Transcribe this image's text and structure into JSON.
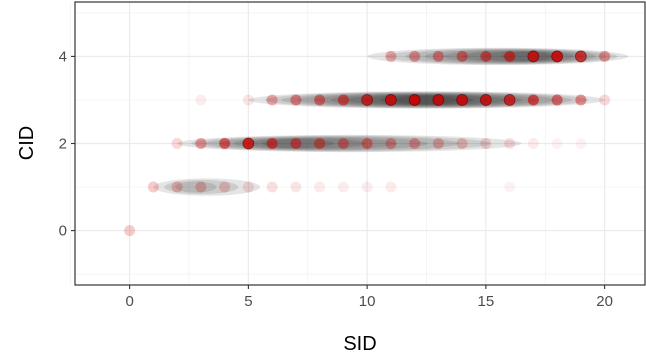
{
  "chart_data": {
    "type": "scatter",
    "title": "",
    "xlabel": "SID",
    "ylabel": "CID",
    "xlim": [
      -2.3,
      21.7
    ],
    "ylim": [
      -1.25,
      5.25
    ],
    "x_ticks": [
      0,
      5,
      10,
      15,
      20
    ],
    "y_ticks": [
      0,
      2,
      4
    ],
    "x_tick_labels": [
      "0",
      "5",
      "10",
      "15",
      "20"
    ],
    "y_tick_labels": [
      "0",
      "2",
      "4"
    ],
    "grid": true,
    "legend": "none",
    "point_color": "#cc0000",
    "density_color": "#000000",
    "density_regions": [
      {
        "y": 1,
        "x_min": 1.0,
        "x_max": 5.5,
        "x_peak": 2.5,
        "peak_intensity": 0.25
      },
      {
        "y": 2,
        "x_min": 2.0,
        "x_max": 16.5,
        "x_peak": 6.5,
        "peak_intensity": 0.7
      },
      {
        "y": 3,
        "x_min": 5.0,
        "x_max": 20.0,
        "x_peak": 12.5,
        "peak_intensity": 0.95
      },
      {
        "y": 4,
        "x_min": 10.0,
        "x_max": 21.0,
        "x_peak": 17.0,
        "peak_intensity": 0.75
      }
    ],
    "points": [
      {
        "x": 0,
        "y": 0,
        "a": 0.2
      },
      {
        "x": 1,
        "y": 1,
        "a": 0.2
      },
      {
        "x": 2,
        "y": 1,
        "a": 0.22
      },
      {
        "x": 3,
        "y": 1,
        "a": 0.22
      },
      {
        "x": 4,
        "y": 1,
        "a": 0.18
      },
      {
        "x": 5,
        "y": 1,
        "a": 0.12
      },
      {
        "x": 6,
        "y": 1,
        "a": 0.12
      },
      {
        "x": 7,
        "y": 1,
        "a": 0.1
      },
      {
        "x": 8,
        "y": 1,
        "a": 0.08
      },
      {
        "x": 9,
        "y": 1,
        "a": 0.07
      },
      {
        "x": 10,
        "y": 1,
        "a": 0.07
      },
      {
        "x": 11,
        "y": 1,
        "a": 0.08
      },
      {
        "x": 16,
        "y": 1,
        "a": 0.05
      },
      {
        "x": 2,
        "y": 2,
        "a": 0.15
      },
      {
        "x": 3,
        "y": 2,
        "a": 0.35
      },
      {
        "x": 4,
        "y": 2,
        "a": 0.55
      },
      {
        "x": 5,
        "y": 2,
        "a": 0.8
      },
      {
        "x": 6,
        "y": 2,
        "a": 0.6
      },
      {
        "x": 7,
        "y": 2,
        "a": 0.5
      },
      {
        "x": 8,
        "y": 2,
        "a": 0.45
      },
      {
        "x": 9,
        "y": 2,
        "a": 0.4
      },
      {
        "x": 10,
        "y": 2,
        "a": 0.4
      },
      {
        "x": 11,
        "y": 2,
        "a": 0.3
      },
      {
        "x": 12,
        "y": 2,
        "a": 0.3
      },
      {
        "x": 13,
        "y": 2,
        "a": 0.25
      },
      {
        "x": 14,
        "y": 2,
        "a": 0.2
      },
      {
        "x": 15,
        "y": 2,
        "a": 0.15
      },
      {
        "x": 16,
        "y": 2,
        "a": 0.12
      },
      {
        "x": 17,
        "y": 2,
        "a": 0.08
      },
      {
        "x": 18,
        "y": 2,
        "a": 0.05
      },
      {
        "x": 19,
        "y": 2,
        "a": 0.05
      },
      {
        "x": 3,
        "y": 3,
        "a": 0.07
      },
      {
        "x": 5,
        "y": 3,
        "a": 0.1
      },
      {
        "x": 6,
        "y": 3,
        "a": 0.3
      },
      {
        "x": 7,
        "y": 3,
        "a": 0.4
      },
      {
        "x": 8,
        "y": 3,
        "a": 0.45
      },
      {
        "x": 9,
        "y": 3,
        "a": 0.55
      },
      {
        "x": 10,
        "y": 3,
        "a": 0.7
      },
      {
        "x": 11,
        "y": 3,
        "a": 0.85
      },
      {
        "x": 12,
        "y": 3,
        "a": 0.9
      },
      {
        "x": 13,
        "y": 3,
        "a": 0.85
      },
      {
        "x": 14,
        "y": 3,
        "a": 0.85
      },
      {
        "x": 15,
        "y": 3,
        "a": 0.8
      },
      {
        "x": 16,
        "y": 3,
        "a": 0.75
      },
      {
        "x": 17,
        "y": 3,
        "a": 0.6
      },
      {
        "x": 18,
        "y": 3,
        "a": 0.5
      },
      {
        "x": 19,
        "y": 3,
        "a": 0.4
      },
      {
        "x": 20,
        "y": 3,
        "a": 0.15
      },
      {
        "x": 11,
        "y": 4,
        "a": 0.3
      },
      {
        "x": 12,
        "y": 4,
        "a": 0.35
      },
      {
        "x": 13,
        "y": 4,
        "a": 0.4
      },
      {
        "x": 14,
        "y": 4,
        "a": 0.45
      },
      {
        "x": 15,
        "y": 4,
        "a": 0.5
      },
      {
        "x": 16,
        "y": 4,
        "a": 0.6
      },
      {
        "x": 17,
        "y": 4,
        "a": 0.8
      },
      {
        "x": 18,
        "y": 4,
        "a": 0.85
      },
      {
        "x": 19,
        "y": 4,
        "a": 0.7
      },
      {
        "x": 20,
        "y": 4,
        "a": 0.35
      }
    ]
  }
}
